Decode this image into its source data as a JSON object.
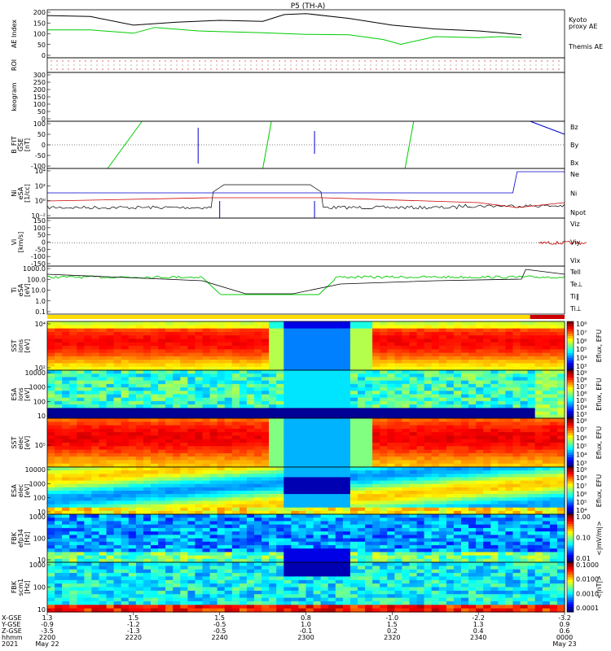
{
  "title": "P5 (TH-A)",
  "chart_data": [
    {
      "type": "line",
      "panel": "ae",
      "ylabel": "AE Index",
      "ylim": [
        -50,
        200
      ],
      "yticks": [
        "200",
        "150",
        "100",
        "50",
        "0"
      ],
      "series": [
        {
          "name": "Kyoto proxy AE",
          "color": "#00cc00",
          "x": [
            2200,
            2210,
            2220,
            2225,
            2235,
            2250,
            2300,
            2310,
            2318,
            2322,
            2330,
            2340,
            2345,
            2350
          ],
          "y": [
            95,
            95,
            78,
            108,
            90,
            80,
            72,
            70,
            45,
            20,
            60,
            55,
            60,
            55
          ]
        },
        {
          "name": "Themis AE",
          "color": "#000000",
          "x": [
            2200,
            2210,
            2220,
            2230,
            2240,
            2250,
            2255,
            2300,
            2310,
            2320,
            2330,
            2340,
            2345,
            2350
          ],
          "y": [
            170,
            165,
            120,
            135,
            145,
            140,
            175,
            180,
            155,
            120,
            100,
            90,
            80,
            70
          ]
        }
      ],
      "legend_lines": [
        [
          "Kyoto",
          "proxy AE"
        ],
        [
          "Themis AE"
        ]
      ]
    },
    {
      "type": "strip",
      "panel": "roi",
      "ylabel": "ROI"
    },
    {
      "type": "line",
      "panel": "keogram",
      "ylabel": "keogram",
      "ylim": [
        0,
        300
      ],
      "yticks": [
        "300",
        "250",
        "200",
        "150",
        "100",
        "50",
        "0"
      ]
    },
    {
      "type": "line",
      "panel": "bfit",
      "ylabel": "B_FIT",
      "sublabel": [
        "GSE",
        "[nT]"
      ],
      "ylim": [
        -100,
        100
      ],
      "yticks": [
        "100",
        "50",
        "0",
        "-50",
        "-100"
      ],
      "legend": [
        {
          "name": "Bz",
          "color": "#cc0000"
        },
        {
          "name": "By",
          "color": "#00cc00"
        },
        {
          "name": "Bx",
          "color": "#0000cc"
        }
      ]
    },
    {
      "type": "line",
      "panel": "density",
      "ylabel": "Ni",
      "sublabel": [
        "eSA",
        "[1/cc]"
      ],
      "ylog": true,
      "yticks": [
        "10⁴",
        "10²",
        "10⁰",
        "10⁻²"
      ],
      "legend": [
        {
          "name": "Ne",
          "color": "#cc0000"
        },
        {
          "name": "Ni",
          "color": "#000000"
        },
        {
          "name": "Npot",
          "color": "#0000cc"
        }
      ]
    },
    {
      "type": "line",
      "panel": "velocity",
      "ylabel": "Vi",
      "sublabel": [
        "[km/s]"
      ],
      "ylim": [
        -150,
        150
      ],
      "yticks": [
        "150",
        "100",
        "50",
        "0",
        "-50",
        "-100",
        "-150"
      ],
      "legend": [
        {
          "name": "Viz",
          "color": "#cc0000"
        },
        {
          "name": "Viy",
          "color": "#00cc00"
        },
        {
          "name": "Vix",
          "color": "#0000cc"
        }
      ]
    },
    {
      "type": "line",
      "panel": "temperature",
      "ylabel": "Ti",
      "sublabel": [
        "eSA",
        "[eV]"
      ],
      "ylog": true,
      "yticks": [
        "1000.0",
        "100.0",
        "10.0",
        "1.0",
        "0.1"
      ],
      "legend": [
        {
          "name": "Tell",
          "color": "#000000"
        },
        {
          "name": "Te⊥",
          "color": "#cc0000"
        },
        {
          "name": "Ti‖",
          "color": "#00cc00"
        },
        {
          "name": "Ti⊥",
          "color": "#0000cc"
        }
      ]
    },
    {
      "type": "heatmap",
      "panel": "sst-ion",
      "ylabel": "SST",
      "sublabel": [
        "ions",
        "[eV]"
      ],
      "yticks": [
        "10⁴",
        "10²"
      ],
      "colorbar": [
        "10⁸",
        "10⁷",
        "10⁶",
        "10⁵",
        "10⁴",
        "10³"
      ],
      "cblabel": "Eflux, EFU"
    },
    {
      "type": "heatmap",
      "panel": "esa-ion",
      "ylabel": "ESA",
      "sublabel": [
        "ions",
        "[eV]"
      ],
      "yticks": [
        "10000",
        "1000",
        "100",
        "10"
      ],
      "colorbar": [
        "10⁹",
        "10⁸",
        "10⁷",
        "10⁶",
        "10⁵",
        "10⁴",
        "10³"
      ],
      "cblabel": "Eflux, EFU"
    },
    {
      "type": "heatmap",
      "panel": "sst-elec",
      "ylabel": "SST",
      "sublabel": [
        "elec",
        "[eV]"
      ],
      "yticks": [
        "10⁵"
      ],
      "colorbar": [
        "10⁸",
        "10⁷",
        "10⁶",
        "10⁵",
        "10⁴",
        "10³"
      ],
      "cblabel": "Eflux, EFU"
    },
    {
      "type": "heatmap",
      "panel": "esa-elec",
      "ylabel": "ESA",
      "sublabel": [
        "elec",
        "[eV]"
      ],
      "yticks": [
        "10000",
        "1000",
        "100",
        "10"
      ],
      "colorbar": [
        "10⁹",
        "10⁸",
        "10⁷",
        "10⁶",
        "10⁵",
        "10⁴"
      ],
      "cblabel": "Eflux, EFU"
    },
    {
      "type": "heatmap",
      "panel": "fbk-e",
      "ylabel": "FBK",
      "sublabel": [
        "efp34",
        "[Hz]"
      ],
      "yticks": [
        "1000",
        "100",
        "10"
      ],
      "colorbar": [
        "1.00",
        "0.10",
        "0.01"
      ],
      "cblabel": "<|mV/m|>"
    },
    {
      "type": "heatmap",
      "panel": "fbk-b",
      "ylabel": "FBK",
      "sublabel": [
        "scm1",
        "[Hz]"
      ],
      "yticks": [
        "1000",
        "100",
        "10"
      ],
      "colorbar": [
        "0.1000",
        "0.0100",
        "0.0010",
        "0.0001"
      ],
      "cblabel": "<|nT|>"
    }
  ],
  "xaxis": {
    "labels": [
      "X-GSE",
      "Y-GSE",
      "Z-GSE",
      "hhmm",
      "2021"
    ],
    "columns": [
      {
        "v": [
          "1.3",
          "-0.9",
          "-3.5",
          "2200",
          "May 22"
        ]
      },
      {
        "v": [
          "1.5",
          "-1.2",
          "-1.3",
          "2220",
          ""
        ]
      },
      {
        "v": [
          "1.5",
          "-0.5",
          "-0.5",
          "2240",
          ""
        ]
      },
      {
        "v": [
          "0.8",
          "1.0",
          "-0.1",
          "2300",
          ""
        ]
      },
      {
        "v": [
          "-1.0",
          "1.5",
          "0.2",
          "2320",
          ""
        ]
      },
      {
        "v": [
          "-2.2",
          "1.3",
          "0.4",
          "2340",
          ""
        ]
      },
      {
        "v": [
          "-3.2",
          "0.9",
          "0.6",
          "0000",
          "May 23"
        ]
      }
    ]
  }
}
